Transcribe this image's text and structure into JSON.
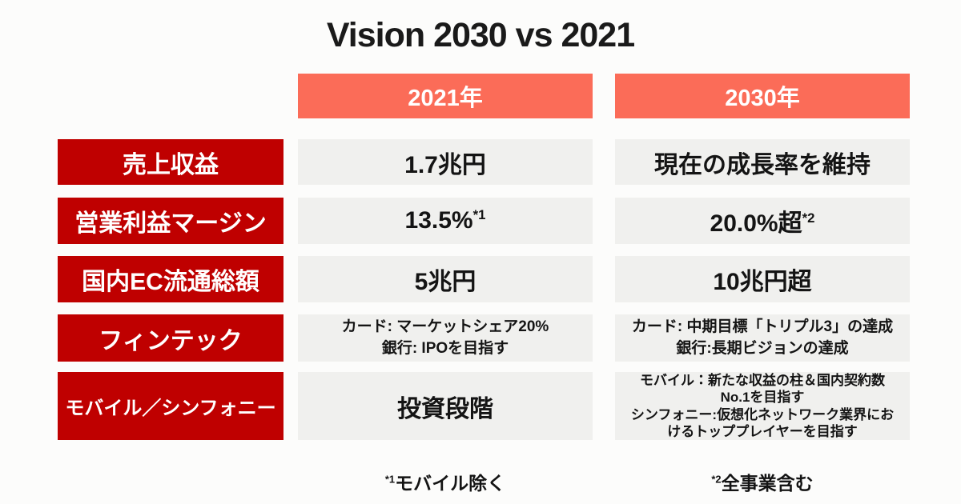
{
  "title": "Vision 2030 vs 2021",
  "colors": {
    "row_label_red": "#BF0000",
    "header_coral": "#FB6C58",
    "cell_gray": "#F0F0EE",
    "text_black": "#141414",
    "background": "#FCFCFB"
  },
  "table": {
    "columns": [
      "2021年",
      "2030年"
    ],
    "rows": [
      {
        "label": "売上収益",
        "c2021": {
          "text": "1.7兆円"
        },
        "c2030": {
          "text": "現在の成長率を維持"
        }
      },
      {
        "label": "営業利益マージン",
        "c2021": {
          "text": "13.5%",
          "sup": "*1"
        },
        "c2030": {
          "text": "20.0%超",
          "sup": "*2"
        }
      },
      {
        "label": "国内EC流通総額",
        "c2021": {
          "text": "5兆円"
        },
        "c2030": {
          "text": "10兆円超"
        }
      },
      {
        "label": "フィンテック",
        "c2021": {
          "lines": [
            "カード: マーケットシェア20%",
            "銀行: IPOを目指す"
          ]
        },
        "c2030": {
          "lines": [
            "カード: 中期目標「トリプル3」の達成",
            "銀行:長期ビジョンの達成"
          ]
        }
      },
      {
        "label": "モバイル／シンフォニー",
        "c2021": {
          "text": "投資段階"
        },
        "c2030": {
          "lines": [
            "モバイル：新たな収益の柱＆国内契約数",
            "No.1を目指す",
            "シンフォニー:仮想化ネットワーク業界にお",
            "けるトッププレイヤーを目指す"
          ]
        }
      }
    ]
  },
  "footnotes": [
    {
      "marker": "*1",
      "text": "モバイル除く"
    },
    {
      "marker": "*2",
      "text": "全事業含む"
    }
  ],
  "chart_data": {
    "type": "table",
    "title": "Vision 2030 vs 2021",
    "columns": [
      "",
      "2021年",
      "2030年"
    ],
    "rows": [
      [
        "売上収益",
        "1.7兆円",
        "現在の成長率を維持"
      ],
      [
        "営業利益マージン",
        "13.5%*1",
        "20.0%超*2"
      ],
      [
        "国内EC流通総額",
        "5兆円",
        "10兆円超"
      ],
      [
        "フィンテック",
        "カード: マーケットシェア20% 銀行: IPOを目指す",
        "カード: 中期目標「トリプル3」の達成 銀行:長期ビジョンの達成"
      ],
      [
        "モバイル／シンフォニー",
        "投資段階",
        "モバイル：新たな収益の柱＆国内契約数No.1を目指す シンフォニー:仮想化ネットワーク業界におけるトッププレイヤーを目指す"
      ]
    ],
    "footnotes": [
      "*1 モバイル除く",
      "*2 全事業含む"
    ],
    "layout": {
      "row_header_color": "#BF0000",
      "column_header_color": "#FB6C58",
      "cell_color": "#F0F0EE"
    }
  }
}
